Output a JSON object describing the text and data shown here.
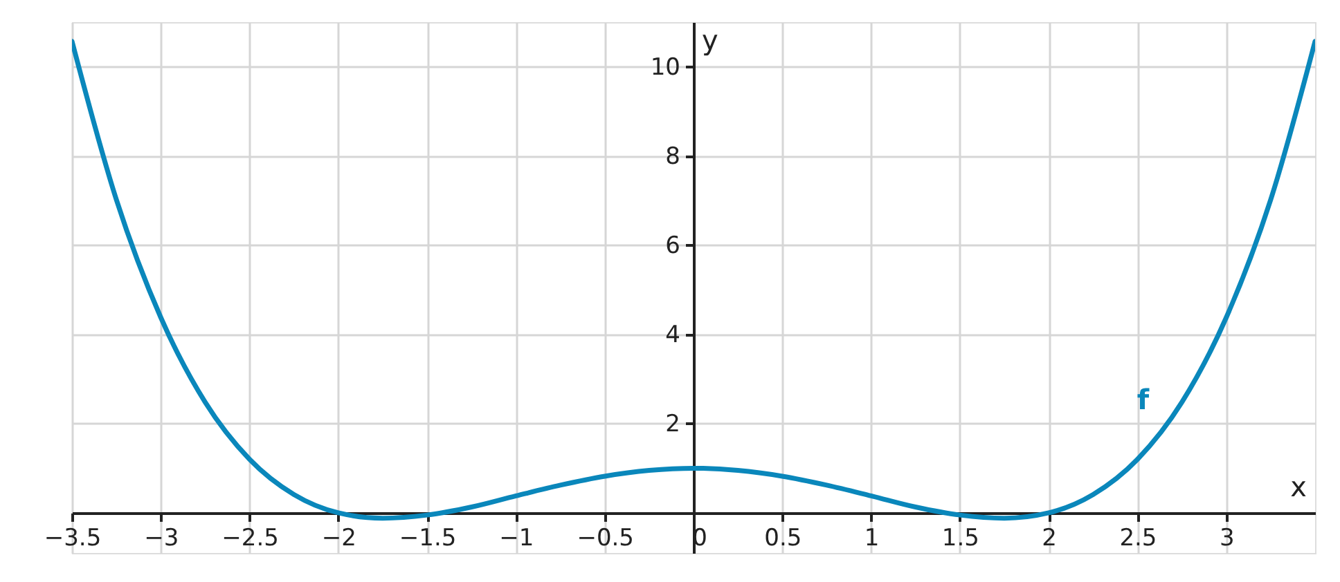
{
  "chart_data": {
    "type": "line",
    "xlabel": "x",
    "ylabel": "y",
    "x": [
      -3.5,
      -3.25,
      -3,
      -2.75,
      -2.5,
      -2.25,
      -2,
      -1.75,
      -1.5,
      -1.25,
      -1,
      -0.75,
      -0.5,
      -0.25,
      0,
      0.25,
      0.5,
      0.75,
      1,
      1.25,
      1.5,
      1.75,
      2,
      2.25,
      2.5,
      2.75,
      3,
      3.25,
      3.5
    ],
    "series": [
      {
        "name": "f",
        "color": "#0a87bb",
        "values": [
          10.57,
          7.02,
          4.38,
          2.48,
          1.2,
          0.41,
          0,
          -0.12,
          -0.05,
          0.13,
          0.38,
          0.62,
          0.82,
          0.95,
          1,
          0.95,
          0.82,
          0.62,
          0.38,
          0.13,
          -0.05,
          -0.12,
          0,
          0.41,
          1.2,
          2.48,
          4.38,
          7.02,
          10.57
        ]
      }
    ],
    "xlim": [
      -3.5,
      3.5
    ],
    "ylim": [
      -0.9,
      11
    ],
    "xticks": [
      -3.5,
      -3,
      -2.5,
      -2,
      -1.5,
      -1,
      -0.5,
      0,
      0.5,
      1,
      1.5,
      2,
      2.5,
      3
    ],
    "yticks": [
      2,
      4,
      6,
      8,
      10
    ],
    "grid": true,
    "marker": "none",
    "line_style": "solid"
  }
}
